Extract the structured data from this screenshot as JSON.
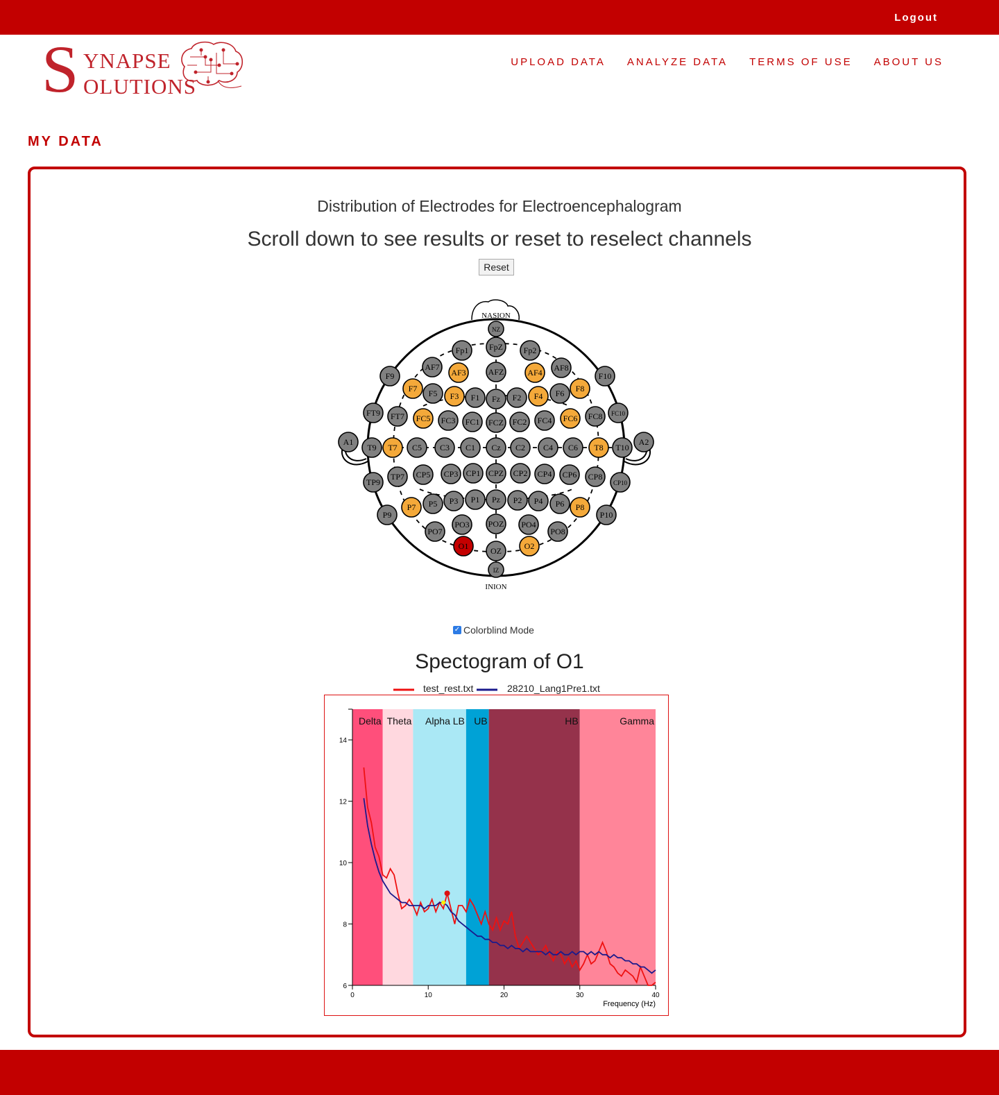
{
  "header": {
    "logout_label": "Logout"
  },
  "logo": {
    "initial_s1": "S",
    "line1": "YNAPSE",
    "line2": "OLUTIONS"
  },
  "nav": {
    "items": [
      "UPLOAD DATA",
      "ANALYZE DATA",
      "TERMS OF USE",
      "ABOUT US"
    ]
  },
  "page": {
    "section_title": "MY DATA"
  },
  "main": {
    "title": "Distribution of Electrodes for Electroencephalogram",
    "subtitle": "Scroll down to see results or reset to reselect channels",
    "reset_label": "Reset",
    "colorblind_label": "Colorblind Mode",
    "colorblind_checked": true
  },
  "head_map": {
    "top_label": "NASION",
    "bottom_label": "INION",
    "colors": {
      "default": "#808080",
      "highlight": "#f4a93a",
      "selected": "#c40000"
    },
    "electrodes": [
      {
        "id": "NZ",
        "s": 0
      },
      {
        "id": "FpZ",
        "s": 0
      },
      {
        "id": "Fp1",
        "s": 0
      },
      {
        "id": "Fp2",
        "s": 0
      },
      {
        "id": "AF7",
        "s": 0
      },
      {
        "id": "AF3",
        "s": 1
      },
      {
        "id": "AFZ",
        "s": 0
      },
      {
        "id": "AF4",
        "s": 1
      },
      {
        "id": "AF8",
        "s": 0
      },
      {
        "id": "F9",
        "s": 0
      },
      {
        "id": "F10",
        "s": 0
      },
      {
        "id": "F7",
        "s": 1
      },
      {
        "id": "F5",
        "s": 0
      },
      {
        "id": "F3",
        "s": 1
      },
      {
        "id": "F1",
        "s": 0
      },
      {
        "id": "Fz",
        "s": 0
      },
      {
        "id": "F2",
        "s": 0
      },
      {
        "id": "F4",
        "s": 1
      },
      {
        "id": "F6",
        "s": 0
      },
      {
        "id": "F8",
        "s": 1
      },
      {
        "id": "FT9",
        "s": 0
      },
      {
        "id": "FT7",
        "s": 0
      },
      {
        "id": "FC5",
        "s": 1
      },
      {
        "id": "FC3",
        "s": 0
      },
      {
        "id": "FC1",
        "s": 0
      },
      {
        "id": "FCZ",
        "s": 0
      },
      {
        "id": "FC2",
        "s": 0
      },
      {
        "id": "FC4",
        "s": 0
      },
      {
        "id": "FC6",
        "s": 1
      },
      {
        "id": "FC8",
        "s": 0
      },
      {
        "id": "FC10",
        "s": 0
      },
      {
        "id": "A1",
        "s": 0
      },
      {
        "id": "T9",
        "s": 0
      },
      {
        "id": "T7",
        "s": 1
      },
      {
        "id": "C5",
        "s": 0
      },
      {
        "id": "C3",
        "s": 0
      },
      {
        "id": "C1",
        "s": 0
      },
      {
        "id": "Cz",
        "s": 0
      },
      {
        "id": "C2",
        "s": 0
      },
      {
        "id": "C4",
        "s": 0
      },
      {
        "id": "C6",
        "s": 0
      },
      {
        "id": "T8",
        "s": 1
      },
      {
        "id": "T10",
        "s": 0
      },
      {
        "id": "A2",
        "s": 0
      },
      {
        "id": "TP9",
        "s": 0
      },
      {
        "id": "TP7",
        "s": 0
      },
      {
        "id": "CP5",
        "s": 0
      },
      {
        "id": "CP3",
        "s": 0
      },
      {
        "id": "CP1",
        "s": 0
      },
      {
        "id": "CPZ",
        "s": 0
      },
      {
        "id": "CP2",
        "s": 0
      },
      {
        "id": "CP4",
        "s": 0
      },
      {
        "id": "CP6",
        "s": 0
      },
      {
        "id": "CP8",
        "s": 0
      },
      {
        "id": "CP10",
        "s": 0
      },
      {
        "id": "P9",
        "s": 0
      },
      {
        "id": "P7",
        "s": 1
      },
      {
        "id": "P5",
        "s": 0
      },
      {
        "id": "P3",
        "s": 0
      },
      {
        "id": "P1",
        "s": 0
      },
      {
        "id": "Pz",
        "s": 0
      },
      {
        "id": "P2",
        "s": 0
      },
      {
        "id": "P4",
        "s": 0
      },
      {
        "id": "P6",
        "s": 0
      },
      {
        "id": "P8",
        "s": 1
      },
      {
        "id": "P10",
        "s": 0
      },
      {
        "id": "PO7",
        "s": 0
      },
      {
        "id": "PO3",
        "s": 0
      },
      {
        "id": "POZ",
        "s": 0
      },
      {
        "id": "PO4",
        "s": 0
      },
      {
        "id": "PO8",
        "s": 0
      },
      {
        "id": "O1",
        "s": 2
      },
      {
        "id": "OZ",
        "s": 0
      },
      {
        "id": "O2",
        "s": 1
      },
      {
        "id": "IZ",
        "s": 0
      }
    ]
  },
  "chart_data": {
    "type": "line",
    "title": "Spectogram of O1",
    "xlabel": "Frequency (Hz)",
    "ylabel": "",
    "xlim": [
      0,
      40
    ],
    "ylim": [
      6,
      15
    ],
    "x_ticks": [
      0,
      10,
      20,
      30,
      40
    ],
    "y_ticks": [
      6,
      8,
      10,
      12,
      14
    ],
    "bands": [
      {
        "name": "Delta",
        "from": 0,
        "to": 4,
        "color": "#ff4f7b"
      },
      {
        "name": "Theta",
        "from": 4,
        "to": 8,
        "color": "#ffd8df"
      },
      {
        "name": "Alpha LB",
        "from": 8,
        "to": 15,
        "color": "#aae8f5"
      },
      {
        "name": "UB",
        "from": 15,
        "to": 18,
        "color": "#00a2d6"
      },
      {
        "name": "HB",
        "from": 18,
        "to": 30,
        "color": "#95324b"
      },
      {
        "name": "Gamma",
        "from": 30,
        "to": 40,
        "color": "#ff8599"
      }
    ],
    "series": [
      {
        "name": "test_rest.txt",
        "color": "#ee1111",
        "x": [
          1.5,
          2,
          2.5,
          3,
          3.5,
          4,
          4.5,
          5,
          5.5,
          6,
          6.5,
          7,
          7.5,
          8,
          8.5,
          9,
          9.5,
          10,
          10.5,
          11,
          11.5,
          12,
          12.5,
          13,
          13.5,
          14,
          14.5,
          15,
          15.5,
          16,
          16.5,
          17,
          17.5,
          18,
          18.5,
          19,
          19.5,
          20,
          20.5,
          21,
          21.5,
          22,
          22.5,
          23,
          23.5,
          24,
          24.5,
          25,
          25.5,
          26,
          26.5,
          27,
          27.5,
          28,
          28.5,
          29,
          29.5,
          30,
          30.5,
          31,
          31.5,
          32,
          32.5,
          33,
          33.5,
          34,
          34.5,
          35,
          35.5,
          36,
          36.5,
          37,
          37.5,
          38,
          38.5,
          39,
          39.5,
          40
        ],
        "y": [
          13.1,
          11.8,
          11.3,
          10.5,
          10.2,
          9.6,
          9.5,
          9.8,
          9.6,
          9.0,
          8.5,
          8.6,
          8.8,
          8.6,
          8.3,
          8.7,
          8.4,
          8.5,
          8.8,
          8.4,
          8.7,
          8.5,
          9.0,
          8.5,
          8.0,
          8.6,
          8.6,
          8.4,
          8.8,
          8.6,
          8.3,
          8.0,
          8.4,
          8.0,
          7.8,
          8.2,
          7.8,
          8.1,
          8.0,
          8.4,
          7.6,
          7.2,
          7.4,
          7.6,
          7.4,
          7.2,
          7.0,
          7.1,
          7.3,
          7.0,
          6.8,
          7.1,
          7.0,
          6.7,
          6.9,
          6.6,
          6.8,
          6.5,
          6.7,
          7.0,
          6.7,
          6.8,
          7.1,
          7.4,
          7.1,
          6.7,
          6.6,
          6.4,
          6.3,
          6.5,
          6.4,
          6.3,
          6.1,
          6.6,
          6.3,
          6.0,
          6.0,
          6.1
        ],
        "marker": {
          "x": 12.5,
          "y": 9.0,
          "color": "#dd1111"
        }
      },
      {
        "name": "28210_Lang1Pre1.txt",
        "color": "#1a1a8c",
        "x": [
          1.5,
          2,
          2.5,
          3,
          3.5,
          4,
          4.5,
          5,
          5.5,
          6,
          6.5,
          7,
          7.5,
          8,
          8.5,
          9,
          9.5,
          10,
          10.5,
          11,
          11.5,
          12,
          12.5,
          13,
          13.5,
          14,
          14.5,
          15,
          15.5,
          16,
          16.5,
          17,
          17.5,
          18,
          18.5,
          19,
          19.5,
          20,
          20.5,
          21,
          21.5,
          22,
          22.5,
          23,
          23.5,
          24,
          24.5,
          25,
          25.5,
          26,
          26.5,
          27,
          27.5,
          28,
          28.5,
          29,
          29.5,
          30,
          30.5,
          31,
          31.5,
          32,
          32.5,
          33,
          33.5,
          34,
          34.5,
          35,
          35.5,
          36,
          36.5,
          37,
          37.5,
          38,
          38.5,
          39,
          39.5,
          40
        ],
        "y": [
          12.1,
          11.2,
          10.6,
          10.1,
          9.7,
          9.4,
          9.2,
          9.0,
          8.9,
          8.8,
          8.7,
          8.7,
          8.6,
          8.6,
          8.6,
          8.6,
          8.5,
          8.6,
          8.6,
          8.6,
          8.7,
          8.7,
          8.6,
          8.4,
          8.3,
          8.1,
          8.0,
          7.9,
          7.8,
          7.7,
          7.6,
          7.6,
          7.5,
          7.5,
          7.4,
          7.4,
          7.3,
          7.3,
          7.2,
          7.3,
          7.2,
          7.2,
          7.1,
          7.2,
          7.1,
          7.1,
          7.1,
          7.1,
          7.0,
          7.1,
          7.0,
          7.0,
          7.1,
          7.0,
          7.0,
          7.1,
          7.0,
          7.1,
          7.1,
          7.0,
          7.1,
          7.0,
          7.1,
          7.0,
          7.0,
          6.9,
          7.0,
          6.9,
          6.9,
          6.8,
          6.8,
          6.7,
          6.7,
          6.6,
          6.6,
          6.5,
          6.4,
          6.5
        ],
        "marker": {
          "x": 12.0,
          "y": 8.7,
          "color": "#ffee00"
        }
      }
    ]
  }
}
